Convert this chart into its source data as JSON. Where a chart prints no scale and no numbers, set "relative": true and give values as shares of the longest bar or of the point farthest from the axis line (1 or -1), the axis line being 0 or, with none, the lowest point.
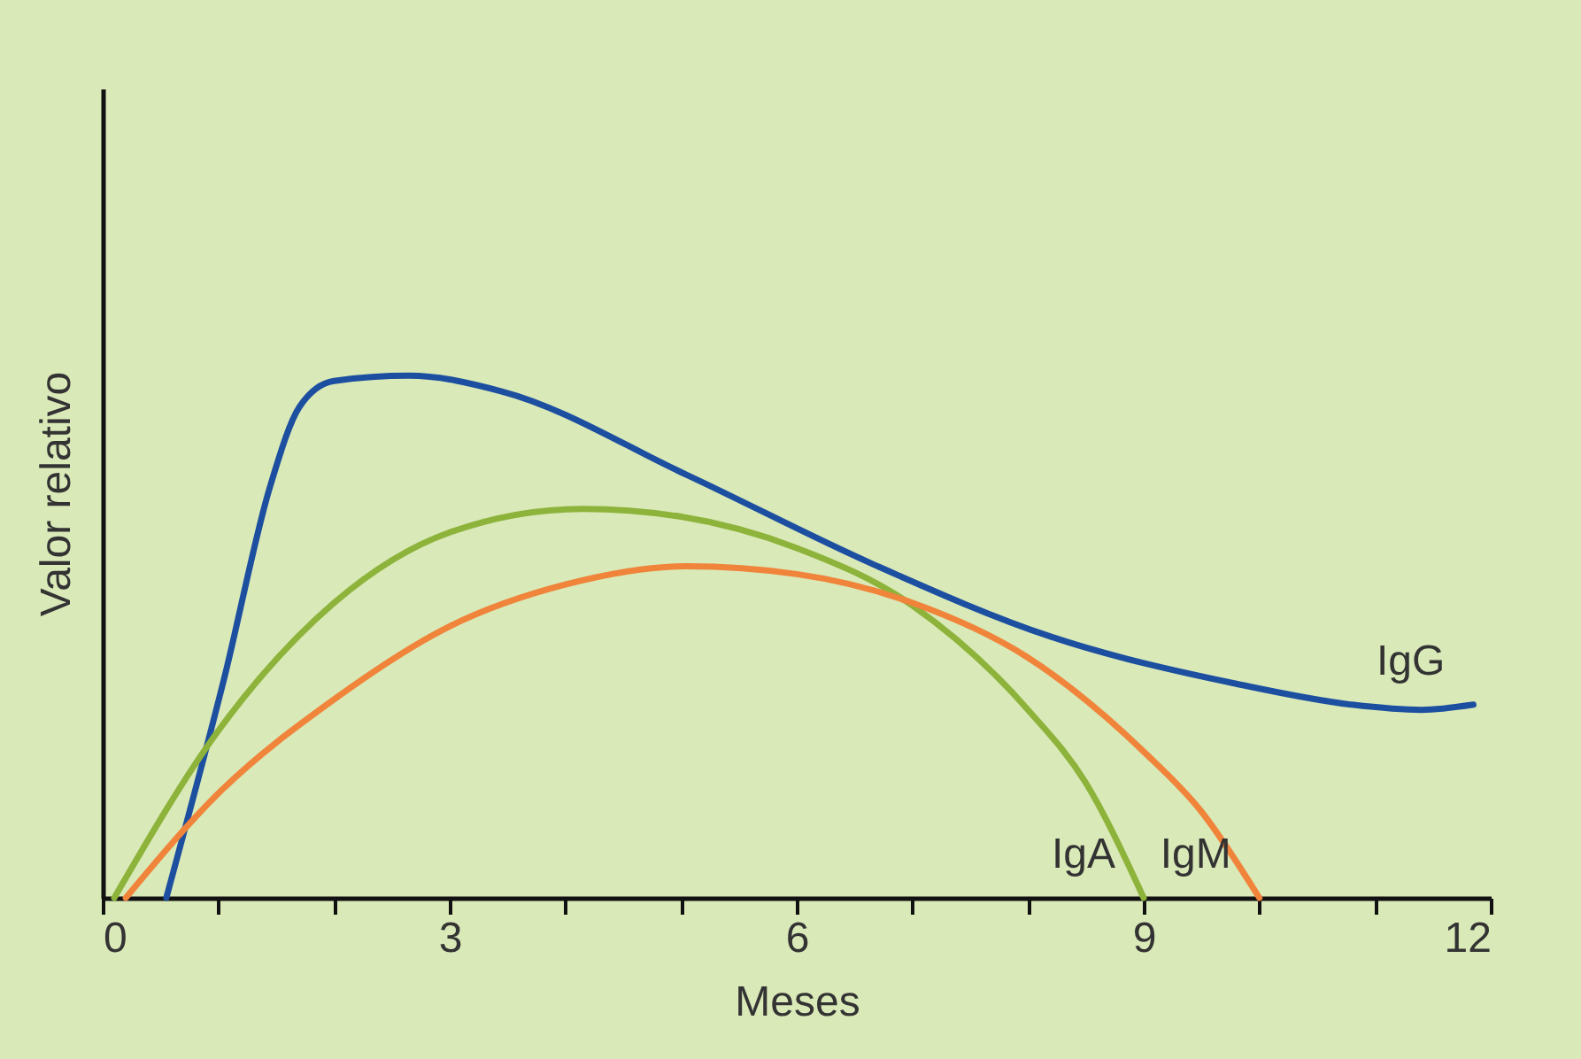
{
  "chart_data": {
    "type": "line",
    "xlabel": "Meses",
    "ylabel": "Valor relativo",
    "relative": true,
    "xlim": [
      0,
      12
    ],
    "xticks": [
      0,
      {
        "value": 1,
        "label": null
      },
      {
        "value": 2,
        "label": null
      },
      3,
      {
        "value": 4,
        "label": null
      },
      {
        "value": 5,
        "label": null
      },
      6,
      {
        "value": 7,
        "label": null
      },
      {
        "value": 8,
        "label": null
      },
      9,
      {
        "value": 10,
        "label": null
      },
      {
        "value": 11,
        "label": null
      },
      12
    ],
    "grid": false,
    "legend": false,
    "marker": "none",
    "line_style": "solid",
    "series": [
      {
        "name": "IgG",
        "color": "#1d4fa0",
        "x": [
          0.55,
          1.05,
          1.45,
          1.7,
          2.0,
          2.65,
          3.45,
          5.05,
          6.65,
          8.2,
          9.8,
          10.8,
          11.4,
          11.85
        ],
        "values": [
          0,
          0.42,
          0.79,
          0.94,
          0.99,
          1.0,
          0.97,
          0.81,
          0.64,
          0.5,
          0.41,
          0.37,
          0.36,
          0.37
        ]
      },
      {
        "name": "IgA",
        "color": "#8db33a",
        "x": [
          0.1,
          1,
          2,
          3,
          4.15,
          5,
          6,
          7,
          8,
          8.5,
          9
        ],
        "values": [
          0,
          0.32,
          0.565,
          0.7,
          0.745,
          0.73,
          0.67,
          0.56,
          0.36,
          0.22,
          0
        ]
      },
      {
        "name": "IgM",
        "color": "#f0843a",
        "x": [
          0.2,
          1,
          2,
          3,
          4,
          5.05,
          6,
          7,
          8,
          9,
          9.5,
          10
        ],
        "values": [
          0,
          0.2,
          0.38,
          0.52,
          0.6,
          0.635,
          0.62,
          0.565,
          0.46,
          0.28,
          0.165,
          0
        ]
      }
    ]
  }
}
